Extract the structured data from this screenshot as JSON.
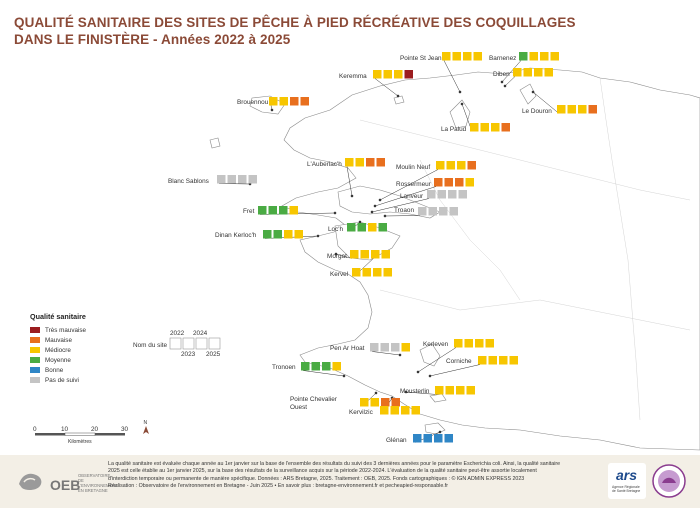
{
  "title": {
    "line1": "QUALITÉ SANITAIRE DES SITES DE PÊCHE À PIED RÉCRÉATIVE DES COQUILLAGES",
    "line2": "DANS LE FINISTÈRE - Années 2022 à 2025"
  },
  "colors": {
    "tres_mauvaise": "#9b1c1f",
    "mauvaise": "#e86f1e",
    "mediocre": "#f7c600",
    "moyenne": "#4aab43",
    "bonne": "#2f86c6",
    "pas_de_suivi": "#c4c4c4",
    "title": "#8b4a37",
    "land": "#ffffff",
    "coast": "#888888"
  },
  "legend": {
    "title": "Qualité sanitaire",
    "items": [
      {
        "label": "Très mauvaise",
        "color": "#9b1c1f"
      },
      {
        "label": "Mauvaise",
        "color": "#e86f1e"
      },
      {
        "label": "Médiocre",
        "color": "#f7c600"
      },
      {
        "label": "Moyenne",
        "color": "#4aab43"
      },
      {
        "label": "Bonne",
        "color": "#2f86c6"
      },
      {
        "label": "Pas de suivi",
        "color": "#c4c4c4"
      }
    ],
    "example": {
      "site_label": "Nom du site",
      "years": [
        "2022",
        "2023",
        "2024",
        "2025"
      ]
    }
  },
  "scale_bar": {
    "ticks": [
      "0",
      "10",
      "20",
      "30"
    ],
    "unit": "Kilomètres",
    "north": "N"
  },
  "sites": [
    {
      "name": "Pointe St Jean",
      "q": [
        "mediocre",
        "mediocre",
        "mediocre",
        "mediocre"
      ]
    },
    {
      "name": "Barnenez",
      "q": [
        "moyenne",
        "mediocre",
        "mediocre",
        "mediocre"
      ]
    },
    {
      "name": "Keremma",
      "q": [
        "mediocre",
        "mediocre",
        "mediocre",
        "tres_mauvaise"
      ]
    },
    {
      "name": "Diben",
      "q": [
        "mediocre",
        "mediocre",
        "mediocre",
        "mediocre"
      ]
    },
    {
      "name": "Brouennou",
      "q": [
        "mediocre",
        "mediocre",
        "mauvaise",
        "mauvaise"
      ]
    },
    {
      "name": "Le Douron",
      "q": [
        "mediocre",
        "mediocre",
        "mediocre",
        "mauvaise"
      ]
    },
    {
      "name": "La Palud",
      "q": [
        "mediocre",
        "mediocre",
        "mediocre",
        "mauvaise"
      ]
    },
    {
      "name": "L'Auberlac'h",
      "q": [
        "mediocre",
        "mediocre",
        "mauvaise",
        "mauvaise"
      ]
    },
    {
      "name": "Moulin Neuf",
      "q": [
        "mediocre",
        "mediocre",
        "mediocre",
        "mauvaise"
      ]
    },
    {
      "name": "Blanc Sablons",
      "q": [
        "pas_de_suivi",
        "pas_de_suivi",
        "pas_de_suivi",
        "pas_de_suivi"
      ]
    },
    {
      "name": "Rossermeur",
      "q": [
        "mauvaise",
        "mauvaise",
        "mauvaise",
        "mediocre"
      ]
    },
    {
      "name": "Lanveur",
      "q": [
        "pas_de_suivi",
        "pas_de_suivi",
        "pas_de_suivi",
        "pas_de_suivi"
      ]
    },
    {
      "name": "Fret",
      "q": [
        "moyenne",
        "moyenne",
        "moyenne",
        "mediocre"
      ]
    },
    {
      "name": "Troaon",
      "q": [
        "pas_de_suivi",
        "pas_de_suivi",
        "pas_de_suivi",
        "pas_de_suivi"
      ]
    },
    {
      "name": "Dinan Kerloc'h",
      "q": [
        "moyenne",
        "moyenne",
        "mediocre",
        "mediocre"
      ]
    },
    {
      "name": "Loc'h",
      "q": [
        "moyenne",
        "moyenne",
        "mediocre",
        "moyenne"
      ]
    },
    {
      "name": "Morgat",
      "q": [
        "mediocre",
        "mediocre",
        "mediocre",
        "mediocre"
      ]
    },
    {
      "name": "Kervel",
      "q": [
        "mediocre",
        "mediocre",
        "mediocre",
        "mediocre"
      ]
    },
    {
      "name": "Pen Ar Hoat",
      "q": [
        "pas_de_suivi",
        "pas_de_suivi",
        "pas_de_suivi",
        "mediocre"
      ]
    },
    {
      "name": "Kerleven",
      "q": [
        "mediocre",
        "mediocre",
        "mediocre",
        "mediocre"
      ]
    },
    {
      "name": "Corniche",
      "q": [
        "mediocre",
        "mediocre",
        "mediocre",
        "mediocre"
      ]
    },
    {
      "name": "Tronoen",
      "q": [
        "moyenne",
        "moyenne",
        "moyenne",
        "mediocre"
      ]
    },
    {
      "name": "Mousterlin",
      "q": [
        "mediocre",
        "mediocre",
        "mediocre",
        "mediocre"
      ]
    },
    {
      "name": "Pointe Chevalier Ouest",
      "name_lines": [
        "Pointe Chevalier",
        "Ouest"
      ],
      "q": [
        "mediocre",
        "mediocre",
        "mauvaise",
        "mauvaise"
      ]
    },
    {
      "name": "Kervilzic",
      "q": [
        "mediocre",
        "mediocre",
        "mediocre",
        "mediocre"
      ]
    },
    {
      "name": "Glénan",
      "q": [
        "bonne",
        "bonne",
        "bonne",
        "bonne"
      ]
    }
  ],
  "footer": {
    "logo_text": "OEB",
    "logo_sub": "OBSERVATOIRE DE L'ENVIRONNEMENT EN BRETAGNE",
    "line1": "La qualité sanitaire est évaluée chaque année au 1er janvier sur la base de l'ensemble des résultats du suivi des 3 dernières années pour le paramètre Escherichia coli. Ainsi, la qualité sanitaire",
    "line2": "2025 est celle établie au 1er janvier 2025, sur la base des résultats de la surveillance acquis sur la période 2022-2024. L'évaluation de la qualité sanitaire peut-être assortie localement",
    "line3": "d'interdiction temporaire ou permanente de manière spécifique. Données : ARS Bretagne, 2025. Traitement : OEB, 2025. Fonds cartographiques : © IGN ADMIN EXPRESS 2023",
    "line4": "Réalisation : Observatoire de l'environnement en Bretagne - Juin 2025 • En savoir plus : bretagne-environnement.fr et pecheapied-responsable.fr",
    "ars_logo": "ars",
    "ars_sub": "Agence Régionale de Santé Bretagne"
  }
}
